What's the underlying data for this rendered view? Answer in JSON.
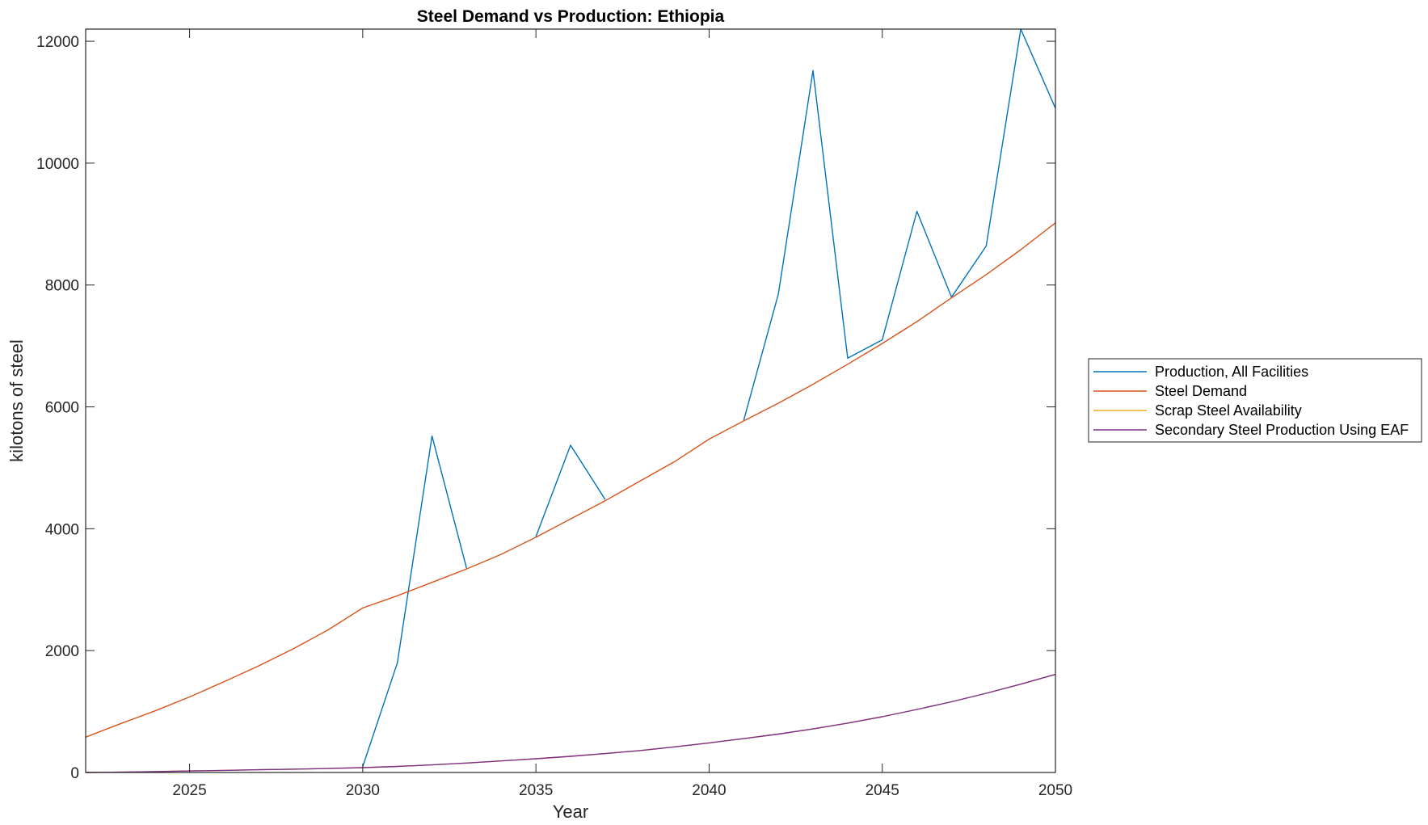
{
  "chart_data": {
    "type": "line",
    "title": "Steel Demand vs Production: Ethiopia",
    "xlabel": "Year",
    "ylabel": "kilotons of steel",
    "xlim": [
      2022,
      2050
    ],
    "ylim": [
      0,
      12200
    ],
    "xticks": [
      2025,
      2030,
      2035,
      2040,
      2045,
      2050
    ],
    "yticks": [
      0,
      2000,
      4000,
      6000,
      8000,
      10000,
      12000
    ],
    "grid": false,
    "legend_position": "outside-right",
    "x": [
      2022,
      2023,
      2024,
      2025,
      2026,
      2027,
      2028,
      2029,
      2030,
      2031,
      2032,
      2033,
      2034,
      2035,
      2036,
      2037,
      2038,
      2039,
      2040,
      2041,
      2042,
      2043,
      2044,
      2045,
      2046,
      2047,
      2048,
      2049,
      2050
    ],
    "series": [
      {
        "name": "Production, All Facilities",
        "color": "#0072BD",
        "values": [
          null,
          null,
          null,
          null,
          null,
          null,
          null,
          null,
          100,
          1800,
          5520,
          3350,
          null,
          3870,
          5370,
          4480,
          null,
          null,
          null,
          5780,
          7850,
          11520,
          6800,
          7100,
          9210,
          7800,
          8640,
          12200,
          10900
        ]
      },
      {
        "name": "Steel Demand",
        "color": "#D95319",
        "values": [
          580,
          800,
          1010,
          1240,
          1490,
          1750,
          2030,
          2340,
          2700,
          2900,
          3120,
          3340,
          3580,
          3860,
          4160,
          4460,
          4780,
          5100,
          5470,
          5770,
          6060,
          6370,
          6700,
          7040,
          7400,
          7790,
          8170,
          8580,
          9020
        ]
      },
      {
        "name": "Scrap Steel Availability",
        "color": "#EDB120",
        "values": [
          0,
          5,
          15,
          25,
          35,
          45,
          55,
          65,
          80,
          100,
          125,
          155,
          190,
          225,
          265,
          310,
          360,
          420,
          485,
          555,
          630,
          715,
          810,
          915,
          1035,
          1160,
          1300,
          1450,
          1610
        ]
      },
      {
        "name": "Secondary Steel Production Using EAF",
        "color": "#7E2F8E",
        "values": [
          0,
          5,
          15,
          25,
          35,
          45,
          55,
          65,
          80,
          100,
          125,
          155,
          190,
          225,
          265,
          310,
          360,
          420,
          485,
          555,
          630,
          715,
          810,
          915,
          1035,
          1160,
          1300,
          1450,
          1610
        ]
      }
    ]
  }
}
